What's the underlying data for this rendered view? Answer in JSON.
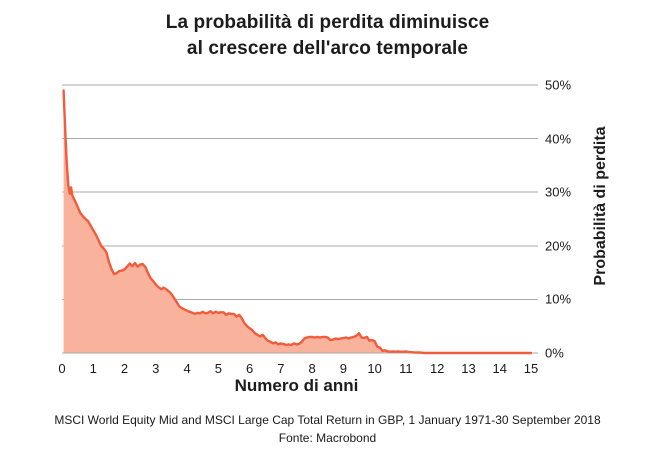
{
  "title": {
    "line1": "La probabilità di perdita diminuisce",
    "line2": "al crescere dell'arco temporale"
  },
  "footer": {
    "line1": "MSCI World Equity Mid and MSCI Large Cap Total Return in GBP, 1 January 1971-30 September 2018",
    "line2": "Fonte: Macrobond"
  },
  "chart_data": {
    "type": "area",
    "title": "La probabilità di perdita diminuisce al crescere dell'arco temporale",
    "xlabel": "Numero di anni",
    "ylabel": "Probabilità di perdita",
    "xlim": [
      0,
      15
    ],
    "ylim": [
      0,
      50
    ],
    "grid": true,
    "legend": false,
    "xticks": [
      0,
      1,
      2,
      3,
      4,
      5,
      6,
      7,
      8,
      9,
      10,
      11,
      12,
      13,
      14,
      15
    ],
    "xtick_labels": [
      "0",
      "1",
      "2",
      "3",
      "4",
      "5",
      "6",
      "7",
      "8",
      "9",
      "10",
      "11",
      "12",
      "13",
      "14",
      "15"
    ],
    "yticks": [
      0,
      10,
      20,
      30,
      40,
      50
    ],
    "ytick_labels": [
      "0%",
      "10%",
      "20%",
      "30%",
      "40%",
      "50%"
    ],
    "colors": {
      "line": "#F25B3B",
      "fill": "#F9B29B",
      "grid": "#AAAAAA",
      "text": "#1A1A1A"
    },
    "series": [
      {
        "name": "Probabilità di perdita",
        "points": [
          [
            0.05,
            49.0
          ],
          [
            0.1,
            42.0
          ],
          [
            0.15,
            35.5
          ],
          [
            0.2,
            31.3
          ],
          [
            0.25,
            29.7
          ],
          [
            0.29,
            30.9
          ],
          [
            0.33,
            29.4
          ],
          [
            0.42,
            28.3
          ],
          [
            0.5,
            27.3
          ],
          [
            0.58,
            26.2
          ],
          [
            0.67,
            25.5
          ],
          [
            0.75,
            25.0
          ],
          [
            0.83,
            24.6
          ],
          [
            0.92,
            23.7
          ],
          [
            1.0,
            22.9
          ],
          [
            1.08,
            22.1
          ],
          [
            1.17,
            21.0
          ],
          [
            1.25,
            20.0
          ],
          [
            1.33,
            19.5
          ],
          [
            1.42,
            18.8
          ],
          [
            1.5,
            17.0
          ],
          [
            1.58,
            15.7
          ],
          [
            1.67,
            14.7
          ],
          [
            1.75,
            14.9
          ],
          [
            1.83,
            15.3
          ],
          [
            1.92,
            15.4
          ],
          [
            2.0,
            15.6
          ],
          [
            2.08,
            16.1
          ],
          [
            2.17,
            16.7
          ],
          [
            2.25,
            16.2
          ],
          [
            2.33,
            16.8
          ],
          [
            2.42,
            16.1
          ],
          [
            2.5,
            16.5
          ],
          [
            2.58,
            16.6
          ],
          [
            2.67,
            16.0
          ],
          [
            2.75,
            14.9
          ],
          [
            2.83,
            14.0
          ],
          [
            2.92,
            13.4
          ],
          [
            3.0,
            12.8
          ],
          [
            3.08,
            12.3
          ],
          [
            3.17,
            11.9
          ],
          [
            3.25,
            12.2
          ],
          [
            3.33,
            11.9
          ],
          [
            3.42,
            11.5
          ],
          [
            3.5,
            11.0
          ],
          [
            3.58,
            10.3
          ],
          [
            3.67,
            9.5
          ],
          [
            3.75,
            8.7
          ],
          [
            3.83,
            8.4
          ],
          [
            3.92,
            8.1
          ],
          [
            4.0,
            7.9
          ],
          [
            4.08,
            7.7
          ],
          [
            4.17,
            7.5
          ],
          [
            4.25,
            7.3
          ],
          [
            4.33,
            7.5
          ],
          [
            4.42,
            7.4
          ],
          [
            4.5,
            7.7
          ],
          [
            4.58,
            7.4
          ],
          [
            4.67,
            7.5
          ],
          [
            4.75,
            7.8
          ],
          [
            4.83,
            7.4
          ],
          [
            4.92,
            7.7
          ],
          [
            5.0,
            7.5
          ],
          [
            5.08,
            7.6
          ],
          [
            5.17,
            7.6
          ],
          [
            5.25,
            7.1
          ],
          [
            5.33,
            7.4
          ],
          [
            5.42,
            7.3
          ],
          [
            5.5,
            7.3
          ],
          [
            5.58,
            6.8
          ],
          [
            5.67,
            7.1
          ],
          [
            5.75,
            6.5
          ],
          [
            5.83,
            5.6
          ],
          [
            5.92,
            5.0
          ],
          [
            6.0,
            4.6
          ],
          [
            6.08,
            4.3
          ],
          [
            6.17,
            3.7
          ],
          [
            6.25,
            3.4
          ],
          [
            6.33,
            3.1
          ],
          [
            6.42,
            3.4
          ],
          [
            6.5,
            2.8
          ],
          [
            6.58,
            2.3
          ],
          [
            6.67,
            2.1
          ],
          [
            6.75,
            1.8
          ],
          [
            6.83,
            2.0
          ],
          [
            6.92,
            1.6
          ],
          [
            7.0,
            1.8
          ],
          [
            7.08,
            1.7
          ],
          [
            7.17,
            1.5
          ],
          [
            7.25,
            1.6
          ],
          [
            7.33,
            1.5
          ],
          [
            7.42,
            1.8
          ],
          [
            7.5,
            1.6
          ],
          [
            7.58,
            1.7
          ],
          [
            7.67,
            2.1
          ],
          [
            7.75,
            2.7
          ],
          [
            7.83,
            2.9
          ],
          [
            7.92,
            3.0
          ],
          [
            8.0,
            3.0
          ],
          [
            8.08,
            2.9
          ],
          [
            8.17,
            3.0
          ],
          [
            8.25,
            2.9
          ],
          [
            8.33,
            3.0
          ],
          [
            8.42,
            3.0
          ],
          [
            8.5,
            2.9
          ],
          [
            8.58,
            2.4
          ],
          [
            8.67,
            2.5
          ],
          [
            8.75,
            2.7
          ],
          [
            8.83,
            2.6
          ],
          [
            8.92,
            2.7
          ],
          [
            9.0,
            2.8
          ],
          [
            9.08,
            2.9
          ],
          [
            9.17,
            2.7
          ],
          [
            9.25,
            2.9
          ],
          [
            9.33,
            3.0
          ],
          [
            9.42,
            3.2
          ],
          [
            9.5,
            3.7
          ],
          [
            9.58,
            2.9
          ],
          [
            9.67,
            2.8
          ],
          [
            9.75,
            3.0
          ],
          [
            9.83,
            2.3
          ],
          [
            9.92,
            2.4
          ],
          [
            10.0,
            2.2
          ],
          [
            10.08,
            1.2
          ],
          [
            10.17,
            1.0
          ],
          [
            10.25,
            0.4
          ],
          [
            10.33,
            0.5
          ],
          [
            10.42,
            0.3
          ],
          [
            10.5,
            0.25
          ],
          [
            10.58,
            0.3
          ],
          [
            10.67,
            0.25
          ],
          [
            10.75,
            0.3
          ],
          [
            10.83,
            0.25
          ],
          [
            10.92,
            0.25
          ],
          [
            11.0,
            0.3
          ],
          [
            11.08,
            0.2
          ],
          [
            11.17,
            0.15
          ],
          [
            11.25,
            0.1
          ],
          [
            11.33,
            0.1
          ],
          [
            11.42,
            0.1
          ],
          [
            11.5,
            0.05
          ],
          [
            11.58,
            0
          ],
          [
            12.0,
            0
          ],
          [
            12.5,
            0
          ],
          [
            13.0,
            0
          ],
          [
            13.5,
            0
          ],
          [
            14.0,
            0
          ],
          [
            14.5,
            0
          ],
          [
            15.0,
            0
          ]
        ]
      }
    ]
  }
}
